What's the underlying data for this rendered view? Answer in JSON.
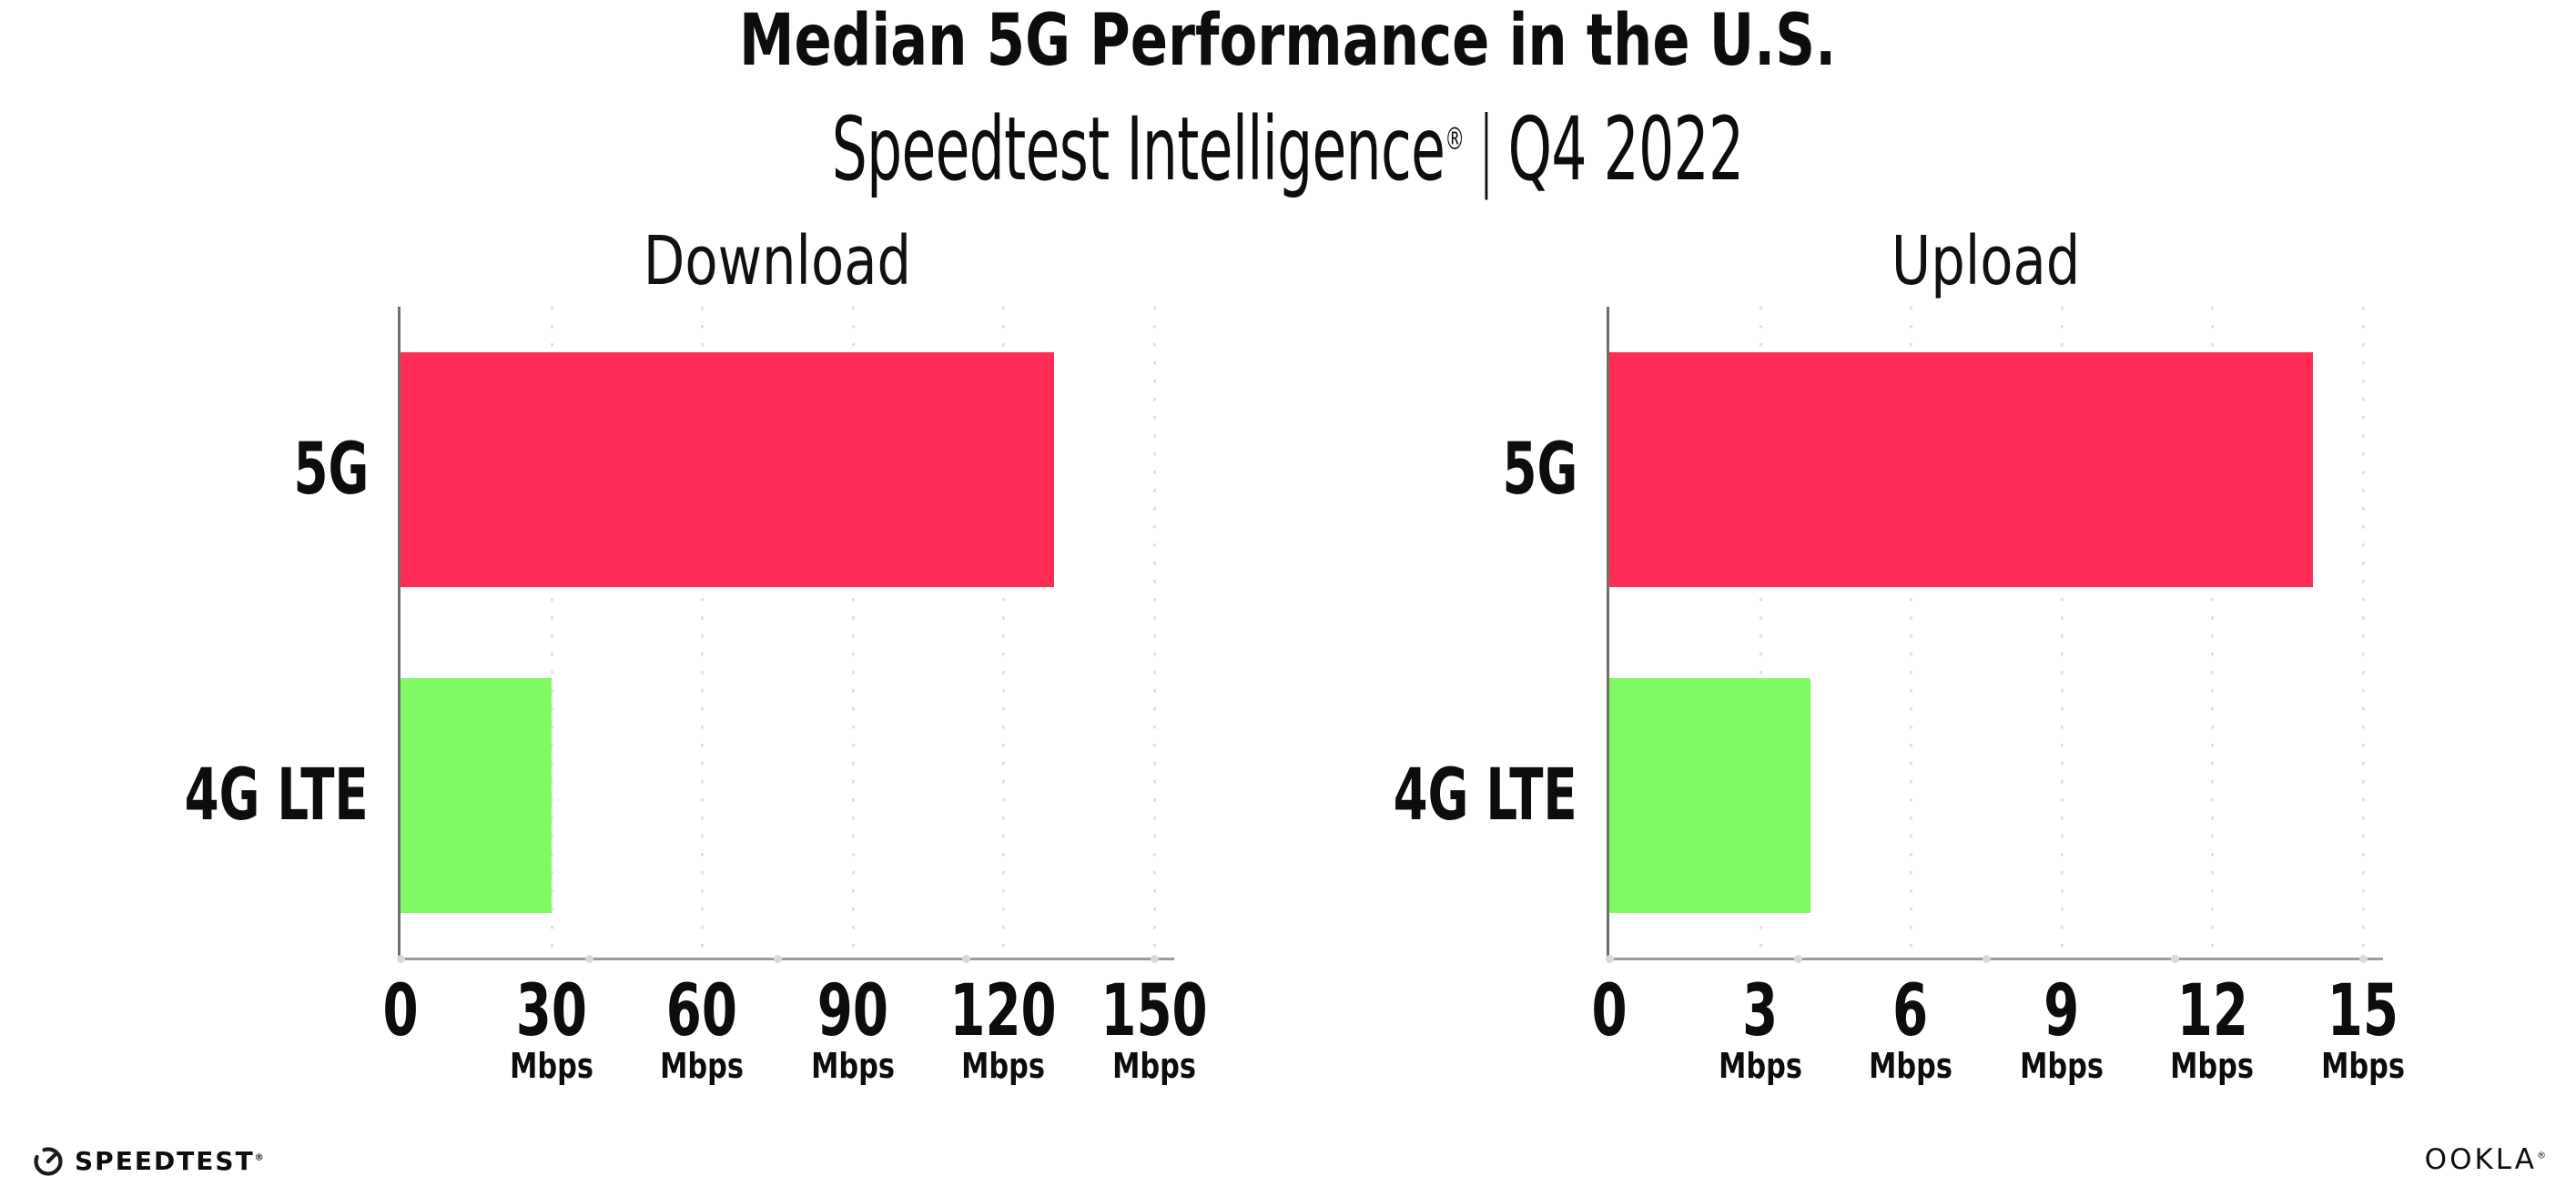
{
  "header": {
    "title": "Median 5G Performance in the U.S.",
    "subtitle_brand": "Speedtest Intelligence",
    "subtitle_reg": "®",
    "subtitle_divider": "|",
    "subtitle_period": "Q4 2022"
  },
  "chart_data": [
    {
      "type": "bar",
      "orientation": "horizontal",
      "title": "Download",
      "categories": [
        "5G",
        "4G LTE"
      ],
      "values": [
        130,
        30
      ],
      "unit": "Mbps",
      "xlim": [
        0,
        150
      ],
      "xticks": [
        0,
        30,
        60,
        90,
        120,
        150
      ],
      "grid": "dotted-vertical",
      "legend": "none",
      "bar_colors": [
        "#ff2d55",
        "#80fa62"
      ]
    },
    {
      "type": "bar",
      "orientation": "horizontal",
      "title": "Upload",
      "categories": [
        "5G",
        "4G LTE"
      ],
      "values": [
        14,
        4
      ],
      "unit": "Mbps",
      "xlim": [
        0,
        15
      ],
      "xticks": [
        0,
        3,
        6,
        9,
        12,
        15
      ],
      "grid": "dotted-vertical",
      "legend": "none",
      "bar_colors": [
        "#ff2d55",
        "#80fa62"
      ]
    }
  ],
  "colors": {
    "bar_5g": "#ff2d55",
    "bar_4g_lte": "#80fa62",
    "axis_x": "#9c9c9c",
    "axis_y": "#6e6e6e",
    "gridline": "#dfe0eb",
    "background": "#ffffff",
    "text": "#0d0d0d"
  },
  "footer": {
    "speedtest_label": "SPEEDTEST",
    "speedtest_reg": "®",
    "speedtest_icon": "speedtest-gauge-icon",
    "ookla_label": "OOKLA",
    "ookla_reg": "®"
  }
}
